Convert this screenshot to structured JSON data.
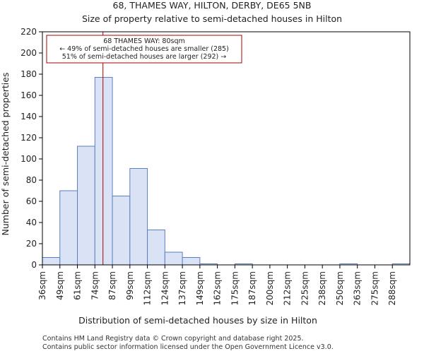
{
  "chart_data": {
    "type": "bar",
    "title": "68, THAMES WAY, HILTON, DERBY, DE65 5NB",
    "subtitle": "Size of property relative to semi-detached houses in Hilton",
    "xlabel": "Distribution of semi-detached houses by size in Hilton",
    "ylabel": "Number of semi-detached properties",
    "categories": [
      "36sqm",
      "49sqm",
      "61sqm",
      "74sqm",
      "87sqm",
      "99sqm",
      "112sqm",
      "124sqm",
      "137sqm",
      "149sqm",
      "162sqm",
      "175sqm",
      "187sqm",
      "200sqm",
      "212sqm",
      "225sqm",
      "238sqm",
      "250sqm",
      "263sqm",
      "275sqm",
      "288sqm"
    ],
    "values": [
      7,
      70,
      112,
      177,
      65,
      91,
      33,
      12,
      7,
      1,
      0,
      1,
      0,
      0,
      0,
      0,
      0,
      1,
      0,
      0,
      1
    ],
    "ylim": [
      0,
      220
    ],
    "yticks": [
      0,
      20,
      40,
      60,
      80,
      100,
      120,
      140,
      160,
      180,
      200,
      220
    ],
    "bar_color": "#dae2f5",
    "bar_edge_color": "#5b7fbf",
    "marker": {
      "value": 80,
      "color": "#aa0000",
      "label_line1": "68 THAMES WAY: 80sqm",
      "label_line2": "← 49% of semi-detached houses are smaller (285)",
      "label_line3": "51% of semi-detached houses are larger (292) →"
    }
  },
  "footer": {
    "line1": "Contains HM Land Registry data © Crown copyright and database right 2025.",
    "line2": "Contains public sector information licensed under the Open Government Licence v3.0."
  }
}
